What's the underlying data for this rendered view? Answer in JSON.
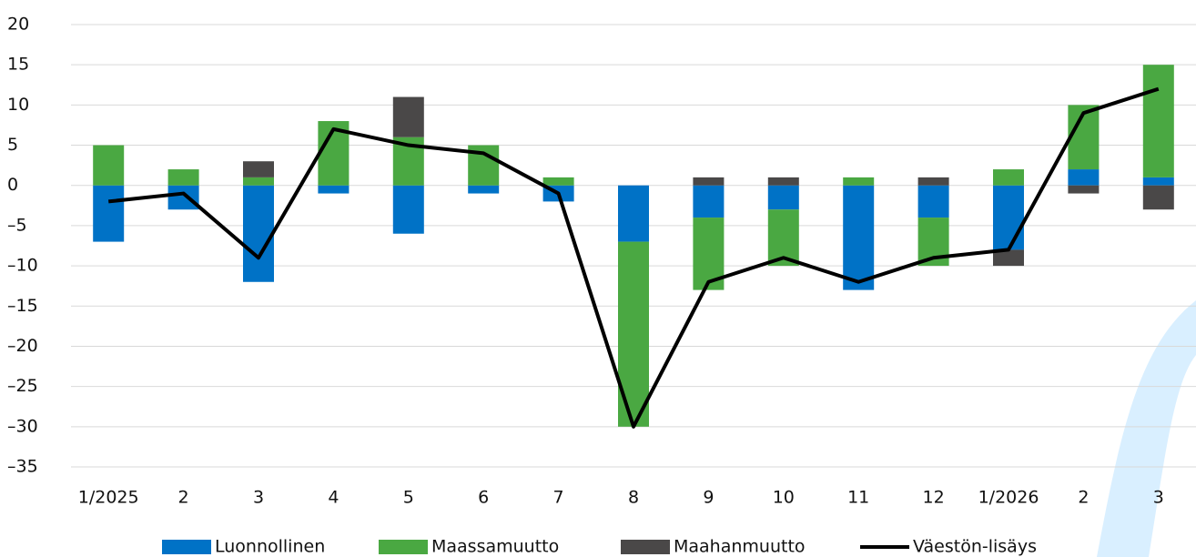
{
  "chart_data": {
    "type": "bar",
    "stacked": true,
    "categories": [
      "1/2025",
      "2",
      "3",
      "4",
      "5",
      "6",
      "7",
      "8",
      "9",
      "10",
      "11",
      "12",
      "1/2026",
      "2",
      "3"
    ],
    "series": [
      {
        "name": "Luonnollinen",
        "type": "bar",
        "color": "#0072c6",
        "values": [
          -7,
          -3,
          -12,
          -1,
          -6,
          -1,
          -2,
          -7,
          -4,
          -3,
          -13,
          -4,
          -8,
          2,
          1
        ]
      },
      {
        "name": "Maassamuutto",
        "type": "bar",
        "color": "#4aa842",
        "values": [
          5,
          2,
          1,
          8,
          6,
          5,
          1,
          -23,
          -9,
          -7,
          1,
          -6,
          2,
          8,
          14
        ]
      },
      {
        "name": "Maahanmuutto",
        "type": "bar",
        "color": "#4a4848",
        "values": [
          0,
          0,
          2,
          0,
          5,
          0,
          0,
          0,
          1,
          1,
          0,
          1,
          -2,
          -1,
          -3
        ]
      },
      {
        "name": "Väestön-lisäys",
        "type": "line",
        "color": "#000000",
        "values": [
          -2,
          -1,
          -9,
          7,
          5,
          4,
          -1,
          -30,
          -12,
          -9,
          -12,
          -9,
          -8,
          9,
          12
        ]
      }
    ],
    "ylim": [
      -35,
      20
    ],
    "yticks": [
      {
        "value": -35,
        "label": "–35"
      },
      {
        "value": -30,
        "label": "–30"
      },
      {
        "value": -25,
        "label": "–25"
      },
      {
        "value": -20,
        "label": "–20"
      },
      {
        "value": -15,
        "label": "–15"
      },
      {
        "value": -10,
        "label": "–10"
      },
      {
        "value": -5,
        "label": "–5"
      },
      0,
      5,
      10,
      15,
      20
    ],
    "grid": true,
    "legend": "bottom"
  }
}
